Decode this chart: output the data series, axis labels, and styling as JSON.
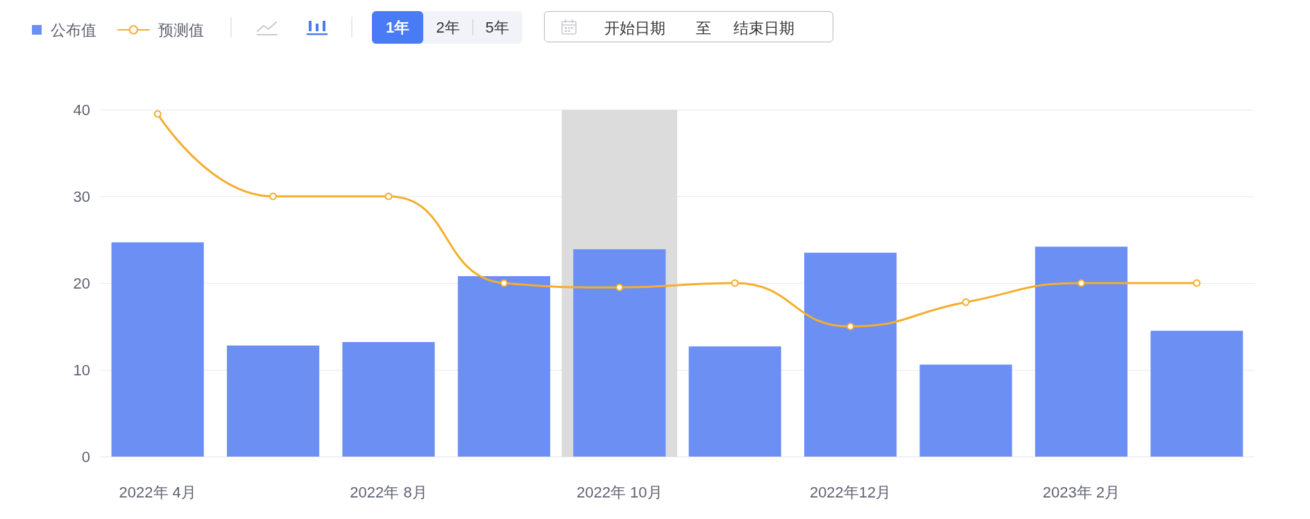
{
  "chart_data": {
    "type": "bar",
    "categories": [
      "2022年 4月",
      null,
      "2022年 8月",
      null,
      "2022年 10月",
      null,
      "2022年12月",
      null,
      "2023年 2月",
      null
    ],
    "series": [
      {
        "name": "公布值",
        "color": "#6b8ff2",
        "values": [
          24.7,
          12.8,
          13.2,
          20.8,
          23.9,
          12.7,
          23.5,
          10.6,
          24.2,
          14.5
        ]
      },
      {
        "name": "预测值",
        "type": "line",
        "color": "#f5ae2d",
        "values": [
          39.5,
          30,
          30,
          20,
          19.5,
          20,
          15,
          17.8,
          20,
          20
        ]
      }
    ],
    "ylim": [
      0,
      40
    ],
    "yticks": [
      0,
      10,
      20,
      30,
      40
    ],
    "grid": "y",
    "legend": "top left",
    "marker": "circle",
    "line_style": "solid",
    "bands": [
      {
        "axis": "x",
        "from": "2022年 10月",
        "to": "2022年 10月",
        "color": "#dcdcdc"
      }
    ],
    "annotations": [
      "1年",
      "2年",
      "5年",
      "开始日期",
      "至",
      "结束日期"
    ]
  }
}
